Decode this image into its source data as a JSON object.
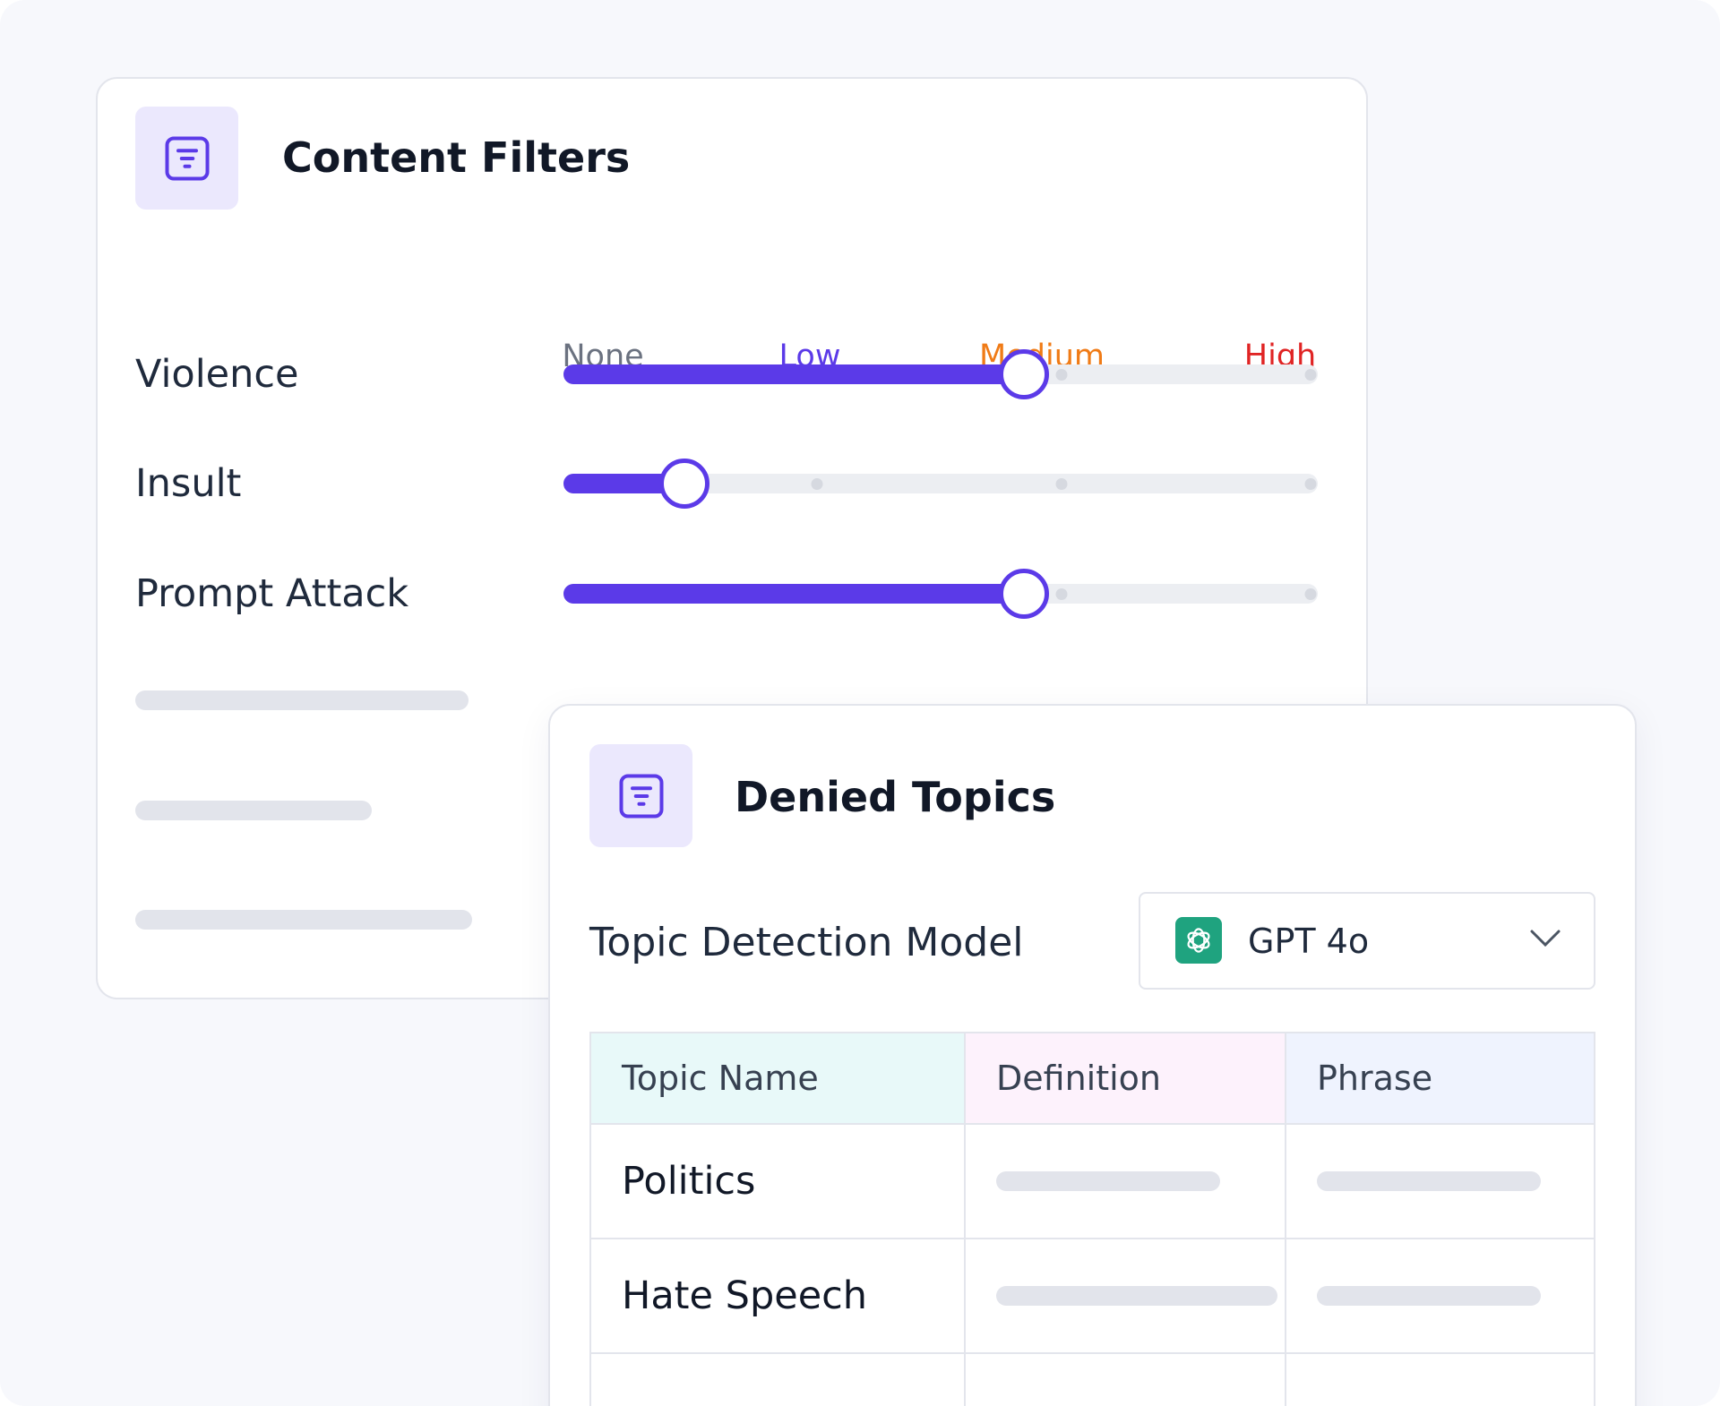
{
  "content_filters": {
    "title": "Content Filters",
    "icon": "filter-list-icon",
    "levels": [
      {
        "label": "None",
        "color": "#6b7280"
      },
      {
        "label": "Low",
        "color": "#5b3ae8"
      },
      {
        "label": "Medium",
        "color": "#f07b16"
      },
      {
        "label": "High",
        "color": "#e02424"
      }
    ],
    "filters": [
      {
        "label": "Violence",
        "value": 0.61
      },
      {
        "label": "Insult",
        "value": 0.16
      },
      {
        "label": "Prompt Attack",
        "value": 0.61
      }
    ],
    "accent": "#5b3ae8"
  },
  "denied_topics": {
    "title": "Denied Topics",
    "icon": "filter-list-icon",
    "model_label": "Topic Detection Model",
    "model_value": "GPT 4o",
    "model_icon": "openai-icon",
    "columns": [
      "Topic Name",
      "Definition",
      "Phrase"
    ],
    "column_colors": [
      "#e8f9f9",
      "#fdf2fc",
      "#eff3fe"
    ],
    "rows": [
      {
        "topic": "Politics"
      },
      {
        "topic": "Hate Speech"
      },
      {
        "topic": ""
      }
    ]
  }
}
